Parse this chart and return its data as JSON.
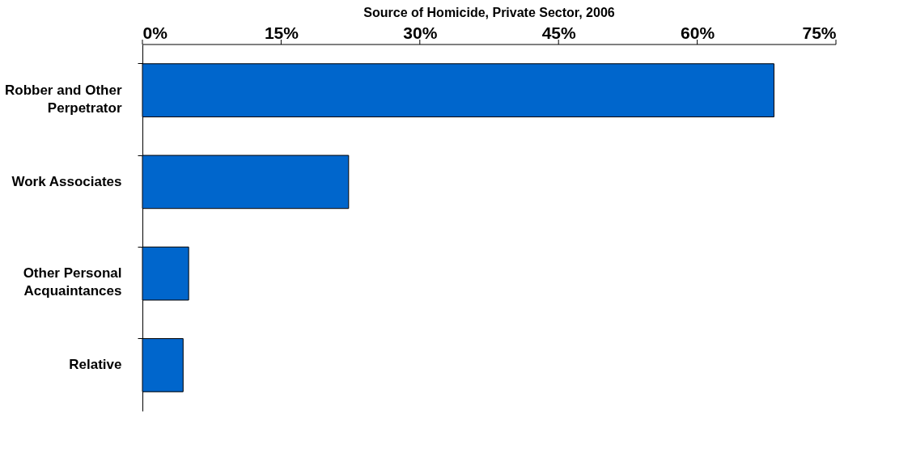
{
  "chart_data": {
    "type": "bar",
    "orientation": "horizontal",
    "title": "Source of Homicide, Private Sector, 2006",
    "categories": [
      "Robber and Other Perpetrator",
      "Work Associates",
      "Other Personal Acquaintances",
      "Relative"
    ],
    "values": [
      68.3,
      22.3,
      5.0,
      4.4
    ],
    "color": "#0066cc",
    "xlim": [
      0,
      75
    ],
    "xticks": [
      {
        "value": 0,
        "label": "0%"
      },
      {
        "value": 15,
        "label": "15%"
      },
      {
        "value": 30,
        "label": "30%"
      },
      {
        "value": 45,
        "label": "45%"
      },
      {
        "value": 60,
        "label": "60%"
      },
      {
        "value": 75,
        "label": "75%"
      }
    ],
    "grid": false
  }
}
